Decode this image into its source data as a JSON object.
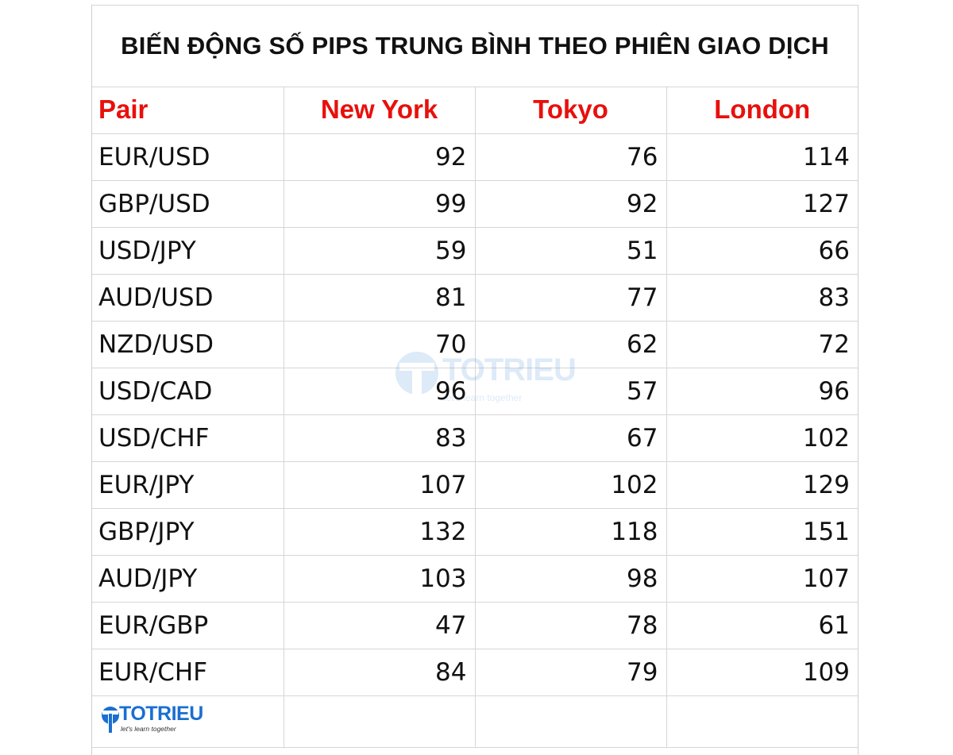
{
  "title": "BIẾN ĐỘNG SỐ PIPS TRUNG BÌNH THEO PHIÊN GIAO DỊCH",
  "headers": [
    "Pair",
    "New York",
    "Tokyo",
    "London"
  ],
  "rows": [
    {
      "pair": "EUR/USD",
      "new_york": "92",
      "tokyo": "76",
      "london": "114"
    },
    {
      "pair": "GBP/USD",
      "new_york": "99",
      "tokyo": "92",
      "london": "127"
    },
    {
      "pair": "USD/JPY",
      "new_york": "59",
      "tokyo": "51",
      "london": "66"
    },
    {
      "pair": "AUD/USD",
      "new_york": "81",
      "tokyo": "77",
      "london": "83"
    },
    {
      "pair": "NZD/USD",
      "new_york": "70",
      "tokyo": "62",
      "london": "72"
    },
    {
      "pair": "USD/CAD",
      "new_york": "96",
      "tokyo": "57",
      "london": "96"
    },
    {
      "pair": "USD/CHF",
      "new_york": "83",
      "tokyo": "67",
      "london": "102"
    },
    {
      "pair": "EUR/JPY",
      "new_york": "107",
      "tokyo": "102",
      "london": "129"
    },
    {
      "pair": "GBP/JPY",
      "new_york": "132",
      "tokyo": "118",
      "london": "151"
    },
    {
      "pair": "AUD/JPY",
      "new_york": "103",
      "tokyo": "98",
      "london": "107"
    },
    {
      "pair": "EUR/GBP",
      "new_york": "47",
      "tokyo": "78",
      "london": "61"
    },
    {
      "pair": "EUR/CHF",
      "new_york": "84",
      "tokyo": "79",
      "london": "109"
    }
  ],
  "logo": {
    "name": "TOTRIEU",
    "tagline": "let's learn together"
  },
  "watermark": {
    "name": "TOTRIEU",
    "tagline": "let's learn together"
  },
  "colors": {
    "header": "#e8100c",
    "brand": "#1a6fd0",
    "text": "#111111",
    "grid": "#d6d6d6"
  }
}
